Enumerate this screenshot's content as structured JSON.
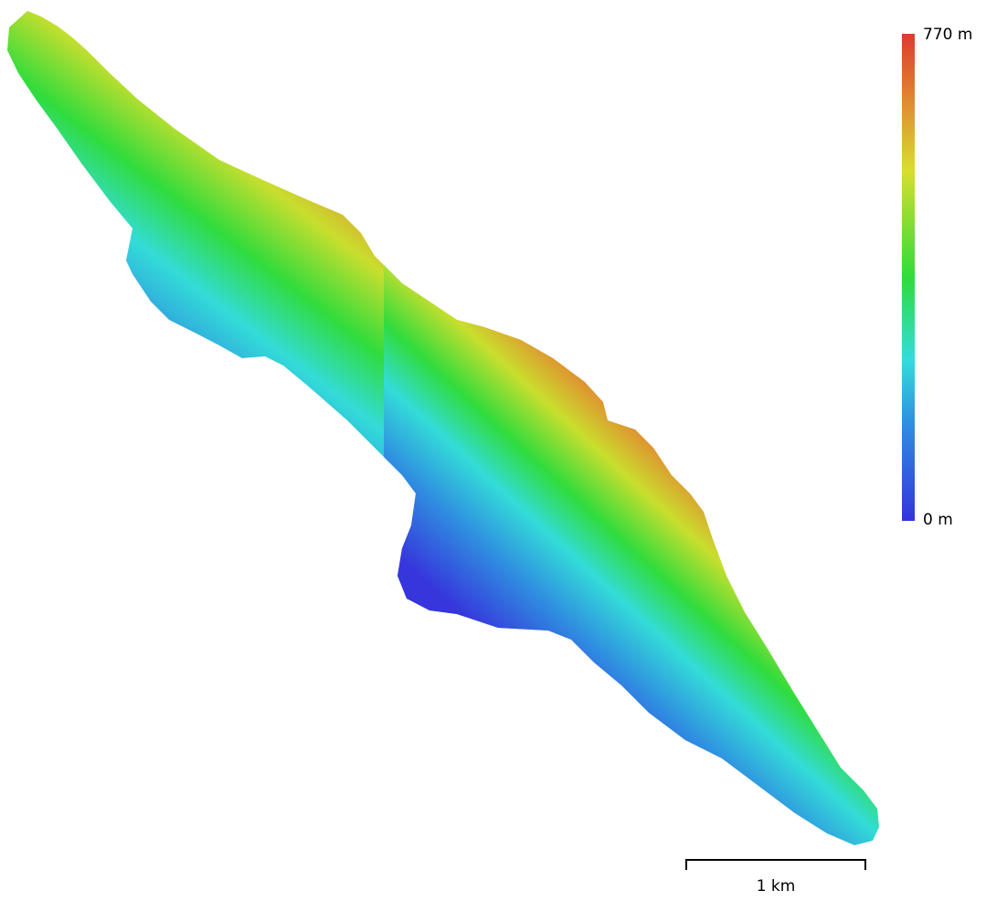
{
  "legend": {
    "max_label": "770 m",
    "min_label": "0 m",
    "max_value": 770,
    "min_value": 0,
    "unit": "m",
    "colors": [
      "#3333dd",
      "#2f8fe0",
      "#33dcdc",
      "#2edc3a",
      "#d8de2e",
      "#e08a32",
      "#dd3a2e"
    ]
  },
  "scale": {
    "label": "1 km"
  }
}
